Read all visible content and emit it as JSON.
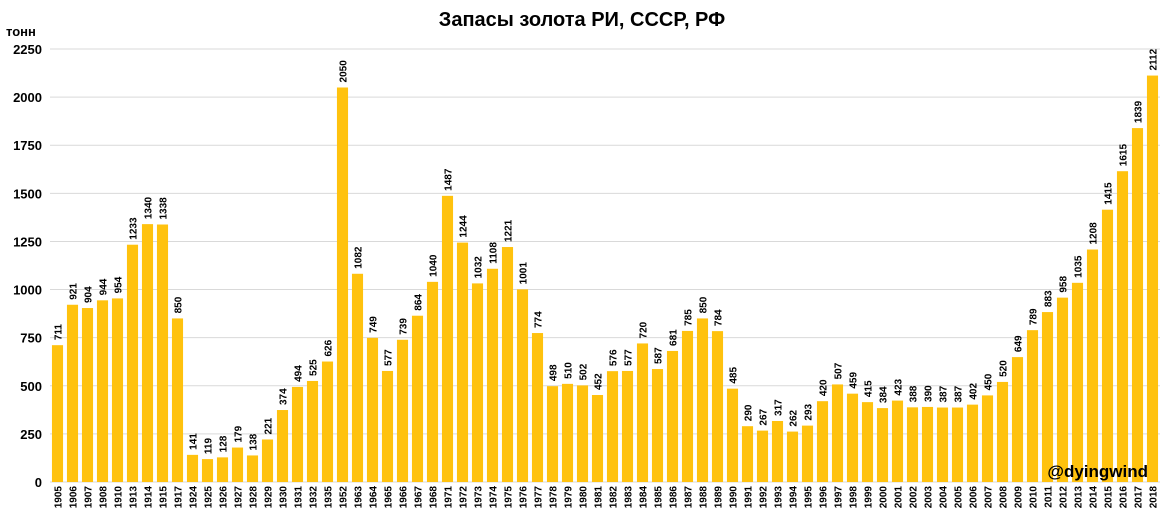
{
  "chart_data": {
    "type": "bar",
    "title": "Запасы золота РИ, СССР, РФ",
    "y_label": "тонн",
    "watermark": "@dyingwind",
    "categories": [
      "1905",
      "1906",
      "1907",
      "1908",
      "1910",
      "1913",
      "1914",
      "1915",
      "1917",
      "1924",
      "1925",
      "1926",
      "1927",
      "1928",
      "1929",
      "1930",
      "1931",
      "1932",
      "1935",
      "1952",
      "1963",
      "1964",
      "1965",
      "1966",
      "1967",
      "1968",
      "1971",
      "1972",
      "1973",
      "1974",
      "1975",
      "1976",
      "1977",
      "1978",
      "1979",
      "1980",
      "1981",
      "1982",
      "1983",
      "1984",
      "1985",
      "1986",
      "1987",
      "1988",
      "1989",
      "1990",
      "1991",
      "1992",
      "1993",
      "1994",
      "1995",
      "1996",
      "1997",
      "1998",
      "1999",
      "2000",
      "2001",
      "2002",
      "2003",
      "2004",
      "2005",
      "2006",
      "2007",
      "2008",
      "2009",
      "2010",
      "2011",
      "2012",
      "2013",
      "2014",
      "2015",
      "2016",
      "2017",
      "2018"
    ],
    "values": [
      711,
      921,
      904,
      944,
      954,
      1233,
      1340,
      1338,
      850,
      141,
      119,
      128,
      179,
      138,
      221,
      374,
      494,
      525,
      626,
      2050,
      1082,
      749,
      577,
      739,
      864,
      1040,
      1487,
      1244,
      1032,
      1108,
      1221,
      1001,
      774,
      498,
      510,
      502,
      452,
      576,
      577,
      720,
      587,
      681,
      785,
      850,
      784,
      485,
      290,
      267,
      317,
      262,
      293,
      420,
      507,
      459,
      415,
      384,
      423,
      388,
      390,
      387,
      387,
      402,
      450,
      520,
      649,
      789,
      883,
      958,
      1035,
      1208,
      1415,
      1615,
      1839,
      2112
    ],
    "color": "#ffc20e",
    "ylim": [
      0,
      2250
    ],
    "yticks": [
      0,
      250,
      500,
      750,
      1000,
      1250,
      1500,
      1750,
      2000,
      2250
    ],
    "grid": true
  }
}
